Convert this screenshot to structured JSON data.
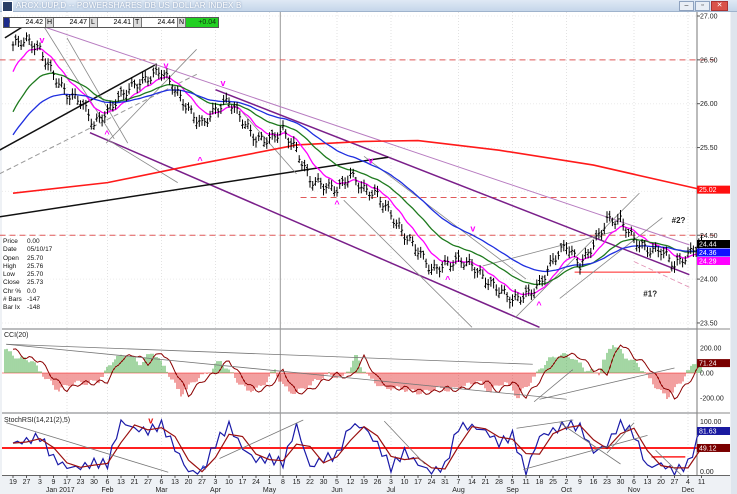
{
  "window": {
    "title": "ARCX:UUP,D -- POWERSHARES DB US DOLLAR INDEX B",
    "min_icon": "minimize-icon",
    "restore_icon": "restore-icon",
    "close_icon": "close-icon",
    "close_glyph": "✕",
    "restore_glyph": "▫",
    "min_glyph": "–"
  },
  "quote": {
    "d_label": "D",
    "d": "24.42",
    "h_label": "H",
    "h": "24.47",
    "l_label": "L",
    "l": "24.41",
    "t_label": "T",
    "t": "24.44",
    "n_label": "N",
    "n": "+0.04"
  },
  "info": [
    {
      "label": "Price",
      "value": "0.00"
    },
    {
      "label": "Date",
      "value": "05/10/17"
    },
    {
      "label": "Open",
      "value": "25.70"
    },
    {
      "label": "High",
      "value": "25.76"
    },
    {
      "label": "Low",
      "value": "25.70"
    },
    {
      "label": "Close",
      "value": "25.73"
    },
    {
      "label": "Chr %",
      "value": "0.0"
    },
    {
      "label": "# Bars",
      "value": "-147"
    },
    {
      "label": "Bar Ix",
      "value": "-148"
    }
  ],
  "x_axis": {
    "ticks": [
      "19",
      "27",
      "3",
      "9",
      "17",
      "23",
      "30",
      "6",
      "13",
      "21",
      "27",
      "6",
      "13",
      "20",
      "27",
      "3",
      "10",
      "17",
      "24",
      "1",
      "8",
      "15",
      "22",
      "30",
      "5",
      "12",
      "19",
      "26",
      "3",
      "10",
      "17",
      "24",
      "31",
      "7",
      "14",
      "21",
      "28",
      "5",
      "11",
      "18",
      "25",
      "2",
      "9",
      "16",
      "23",
      "30",
      "6",
      "13",
      "20",
      "27",
      "4",
      "11"
    ],
    "months": [
      {
        "label": "Jan 2017",
        "at": 3.5
      },
      {
        "label": "Feb",
        "at": 7
      },
      {
        "label": "Mar",
        "at": 11
      },
      {
        "label": "Apr",
        "at": 15
      },
      {
        "label": "May",
        "at": 19
      },
      {
        "label": "Jun",
        "at": 24
      },
      {
        "label": "Jul",
        "at": 28
      },
      {
        "label": "Aug",
        "at": 33
      },
      {
        "label": "Sep",
        "at": 37
      },
      {
        "label": "Oct",
        "at": 41
      },
      {
        "label": "Nov",
        "at": 46
      },
      {
        "label": "Dec",
        "at": 50
      }
    ]
  },
  "chart_data": [
    {
      "type": "line",
      "title": "ARCX:UUP,D -- POWERSHARES DB US DOLLAR INDEX B",
      "x_unit": "weeks (tick index)",
      "ylim": [
        23.5,
        27.0
      ],
      "y_ticks": [
        "27.00",
        "26.50",
        "26.00",
        "25.50",
        "24.50",
        "24.00",
        "23.50"
      ],
      "weekly_close": [
        26.67,
        26.73,
        26.61,
        26.33,
        26.1,
        26.04,
        25.76,
        25.91,
        26.1,
        26.21,
        26.29,
        26.38,
        26.16,
        25.93,
        25.76,
        25.93,
        26.04,
        25.81,
        25.59,
        25.59,
        25.7,
        25.47,
        25.13,
        25.07,
        25.02,
        25.19,
        25.02,
        24.96,
        24.73,
        24.5,
        24.33,
        24.1,
        24.16,
        24.22,
        24.16,
        23.99,
        23.88,
        23.76,
        23.82,
        23.93,
        24.22,
        24.39,
        24.16,
        24.39,
        24.67,
        24.67,
        24.45,
        24.33,
        24.33,
        24.16,
        24.27,
        24.44
      ],
      "moving_averages": [
        {
          "name": "short MA",
          "color": "#ff00ff",
          "alpha": 0.55,
          "seed": 26.3,
          "last_label": "24.29"
        },
        {
          "name": "mid MA",
          "color": "#1e7a1e",
          "alpha": 0.22,
          "seed": 25.85,
          "last_label": ""
        },
        {
          "name": "long MA",
          "color": "#1f2fe0",
          "alpha": 0.13,
          "seed": 25.6,
          "last_label": "24.36"
        }
      ],
      "ma200": {
        "color": "#ff1a1a",
        "points": [
          [
            0,
            24.98
          ],
          [
            7,
            25.1
          ],
          [
            14,
            25.32
          ],
          [
            21,
            25.53
          ],
          [
            26,
            25.57
          ],
          [
            30,
            25.58
          ],
          [
            36,
            25.47
          ],
          [
            43,
            25.3
          ],
          [
            51,
            25.02
          ]
        ],
        "last_label": "25.02"
      },
      "last_price_label": "24.44",
      "hlines": [
        {
          "price": 26.5,
          "from": -1,
          "to": 52,
          "color": "#e05a5a",
          "dash": true
        },
        {
          "price": 24.5,
          "from": -1,
          "to": 52,
          "color": "#e05a5a",
          "dash": true
        },
        {
          "price": 24.93,
          "from": 21.3,
          "to": 45.7,
          "color": "#e05a5a",
          "dash": true
        },
        {
          "price": 24.08,
          "from": 41.6,
          "to": 48.7,
          "color": "#ff2020",
          "dash": false
        }
      ],
      "trendlines": [
        {
          "a": [
            1.26,
            26.93
          ],
          "b": [
            50.1,
            24.39
          ],
          "color": "#b77bc0",
          "w": 1
        },
        {
          "a": [
            15,
            26.16
          ],
          "b": [
            50.1,
            24.05
          ],
          "color": "#7a1f8a",
          "w": 1.5
        },
        {
          "a": [
            5.7,
            25.67
          ],
          "b": [
            39,
            23.45
          ],
          "color": "#7a1f8a",
          "w": 1.5
        },
        {
          "a": [
            -1,
            24.71
          ],
          "b": [
            27.8,
            25.39
          ],
          "color": "#111111",
          "w": 1.5
        },
        {
          "a": [
            -1,
            25.47
          ],
          "b": [
            10.5,
            26.44
          ],
          "color": "#111111",
          "w": 1.5
        },
        {
          "a": [
            -0.6,
            26.75
          ],
          "b": [
            1.26,
            26.93
          ],
          "color": "#111111",
          "w": 1.5
        },
        {
          "a": [
            -1,
            25.2
          ],
          "b": [
            13.8,
            26.35
          ],
          "color": "#999999",
          "w": 1,
          "dash": true
        },
        {
          "a": [
            6.9,
            25.55
          ],
          "b": [
            13.6,
            26.62
          ],
          "color": "#888888",
          "w": 0.8
        },
        {
          "a": [
            2,
            26.95
          ],
          "b": [
            7.5,
            25.6
          ],
          "color": "#888888",
          "w": 0.8
        },
        {
          "a": [
            4,
            26.75
          ],
          "b": [
            8.5,
            25.55
          ],
          "color": "#888888",
          "w": 0.8
        },
        {
          "a": [
            6.9,
            25.6
          ],
          "b": [
            12.2,
            25.1
          ],
          "color": "#888888",
          "w": 0.8
        },
        {
          "a": [
            17,
            25.9
          ],
          "b": [
            21,
            25.2
          ],
          "color": "#888888",
          "w": 0.8
        },
        {
          "a": [
            24.5,
            24.9
          ],
          "b": [
            34,
            23.45
          ],
          "color": "#888888",
          "w": 0.8
        },
        {
          "a": [
            26,
            25.4
          ],
          "b": [
            38,
            24.0
          ],
          "color": "#888888",
          "w": 0.8
        },
        {
          "a": [
            37.2,
            23.56
          ],
          "b": [
            46.4,
            24.98
          ],
          "color": "#888888",
          "w": 0.8
        },
        {
          "a": [
            34.8,
            24.15
          ],
          "b": [
            44.7,
            24.55
          ],
          "color": "#888888",
          "w": 0.8
        },
        {
          "a": [
            40.5,
            23.78
          ],
          "b": [
            48.1,
            24.7
          ],
          "color": "#888888",
          "w": 0.8
        },
        {
          "a": [
            46,
            24.2
          ],
          "b": [
            50.2,
            23.9
          ],
          "color": "#e08bb0",
          "w": 0.8,
          "dash": true
        }
      ],
      "annotations": [
        {
          "text": "v",
          "at": [
            2.15,
            26.69
          ],
          "color": "#ff00ff"
        },
        {
          "text": "^",
          "at": [
            6.96,
            25.62
          ],
          "color": "#ff00ff"
        },
        {
          "text": "v",
          "at": [
            11.33,
            26.4
          ],
          "color": "#ff00ff"
        },
        {
          "text": "v",
          "at": [
            15.56,
            26.2
          ],
          "color": "#ff00ff"
        },
        {
          "text": "^",
          "at": [
            13.85,
            25.32
          ],
          "color": "#ff00ff"
        },
        {
          "text": "^",
          "at": [
            24,
            24.82
          ],
          "color": "#ff00ff"
        },
        {
          "text": "v",
          "at": [
            26.5,
            25.32
          ],
          "color": "#ff00ff"
        },
        {
          "text": "^",
          "at": [
            32.2,
            23.96
          ],
          "color": "#ff00ff"
        },
        {
          "text": "v",
          "at": [
            34.07,
            24.54
          ],
          "color": "#ff00ff"
        },
        {
          "text": "^",
          "at": [
            38.96,
            23.67
          ],
          "color": "#ff00ff"
        },
        {
          "text": "#2?",
          "at": [
            49.3,
            24.64
          ],
          "color": "#222222"
        },
        {
          "text": "#1?",
          "at": [
            47.2,
            23.8
          ],
          "color": "#222222"
        }
      ]
    },
    {
      "type": "area",
      "title": "CCI(20)",
      "ylim": [
        -250,
        250
      ],
      "y_ticks": [
        "200.00",
        "0.00",
        "-200.00"
      ],
      "values": [
        190,
        120,
        100,
        -40,
        -136,
        -80,
        -80,
        -64,
        104,
        150,
        80,
        170,
        24,
        -176,
        -64,
        0,
        100,
        -40,
        -144,
        -110,
        20,
        -160,
        -136,
        -64,
        -10,
        -40,
        126,
        -40,
        -120,
        -120,
        -144,
        -160,
        -120,
        -136,
        -104,
        -64,
        -150,
        -64,
        -190,
        -64,
        80,
        150,
        130,
        30,
        0,
        240,
        130,
        60,
        -80,
        -200,
        -80,
        71.24
      ],
      "last_label": "71.24",
      "colors": {
        "positive": "#1a9a1a",
        "negative": "#e01010",
        "line": "#8b0000"
      },
      "trendlines": [
        {
          "a": [
            -0.5,
            230
          ],
          "b": [
            38.5,
            70
          ]
        },
        {
          "a": [
            -0.5,
            230
          ],
          "b": [
            41,
            -210
          ]
        },
        {
          "a": [
            39,
            -210
          ],
          "b": [
            49,
            40
          ]
        },
        {
          "a": [
            38.6,
            -230
          ],
          "b": [
            41.5,
            30
          ]
        }
      ]
    },
    {
      "type": "line",
      "title": "StochRSI(14,21(2),5)",
      "ylim": [
        0,
        100
      ],
      "y_ticks": [
        "100.00",
        "0.00"
      ],
      "series": [
        {
          "name": "fast",
          "color": "#1a1aa8",
          "values": [
            58,
            62,
            70,
            30,
            14,
            14,
            22,
            20,
            98,
            84,
            80,
            92,
            49,
            6,
            6,
            58,
            90,
            49,
            27,
            30,
            22,
            90,
            14,
            30,
            36,
            90,
            87,
            55,
            14,
            42,
            20,
            6,
            16,
            88,
            88,
            80,
            58,
            72,
            6,
            70,
            80,
            92,
            87,
            42,
            55,
            96,
            74,
            14,
            20,
            6,
            20,
            81.63
          ],
          "last_label": "81.63"
        },
        {
          "name": "slow",
          "color": "#9a1010",
          "values": [
            58,
            60,
            66,
            50,
            22,
            14,
            18,
            21,
            59,
            91,
            82,
            86,
            70,
            27,
            6,
            32,
            74,
            70,
            38,
            28,
            26,
            56,
            52,
            22,
            33,
            63,
            88,
            71,
            34,
            28,
            31,
            13,
            11,
            52,
            88,
            84,
            69,
            65,
            39,
            38,
            75,
            86,
            90,
            64,
            48,
            75,
            85,
            44,
            17,
            13,
            13,
            49.12
          ],
          "last_label": "49.12"
        }
      ],
      "hline": {
        "value": 49.12,
        "color": "#ff2020"
      },
      "annotations": [
        {
          "text": "v",
          "at": [
            10.2,
            99
          ],
          "color": "#e01010"
        },
        {
          "text": "^",
          "at": [
            14.1,
            2
          ],
          "color": "#1a3ad0"
        }
      ],
      "trendlines": [
        {
          "a": [
            -0.5,
            95
          ],
          "b": [
            11.5,
            5
          ]
        },
        {
          "a": [
            15.3,
            30
          ],
          "b": [
            21.5,
            100
          ]
        },
        {
          "a": [
            27.5,
            98
          ],
          "b": [
            30.5,
            20
          ]
        },
        {
          "a": [
            37.8,
            10
          ],
          "b": [
            47,
            72
          ]
        },
        {
          "a": [
            37.3,
            85
          ],
          "b": [
            41.5,
            100
          ]
        },
        {
          "a": [
            40.5,
            95
          ],
          "b": [
            45,
            20
          ]
        },
        {
          "a": [
            44,
            40
          ],
          "b": [
            46,
            95
          ]
        },
        {
          "a": [
            47.6,
            45
          ],
          "b": [
            49.5,
            0
          ]
        }
      ],
      "ref_box": {
        "from": 47.3,
        "to": 49.8,
        "value": 33,
        "color": "#ff2020"
      }
    }
  ]
}
